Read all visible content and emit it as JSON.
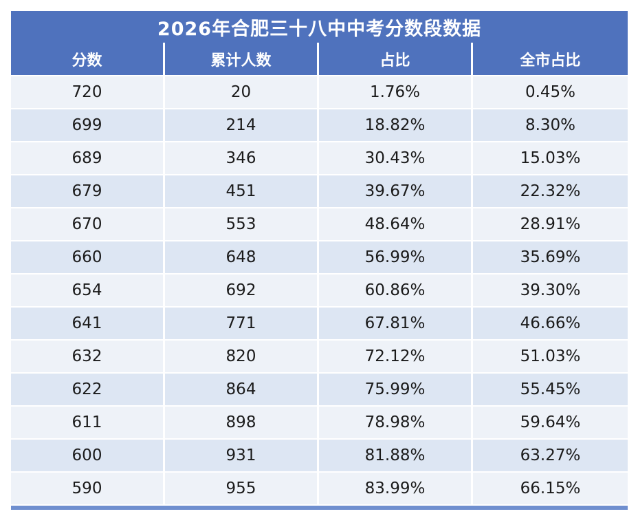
{
  "table": {
    "title": "2026年合肥三十八中中考分数段数据",
    "columns": [
      "分数",
      "累计人数",
      "占比",
      "全市占比"
    ],
    "rows": [
      [
        "720",
        "20",
        "1.76%",
        "0.45%"
      ],
      [
        "699",
        "214",
        "18.82%",
        "8.30%"
      ],
      [
        "689",
        "346",
        "30.43%",
        "15.03%"
      ],
      [
        "679",
        "451",
        "39.67%",
        "22.32%"
      ],
      [
        "670",
        "553",
        "48.64%",
        "28.91%"
      ],
      [
        "660",
        "648",
        "56.99%",
        "35.69%"
      ],
      [
        "654",
        "692",
        "60.86%",
        "39.30%"
      ],
      [
        "641",
        "771",
        "67.81%",
        "46.66%"
      ],
      [
        "632",
        "820",
        "72.12%",
        "51.03%"
      ],
      [
        "622",
        "864",
        "75.99%",
        "55.45%"
      ],
      [
        "611",
        "898",
        "78.98%",
        "59.64%"
      ],
      [
        "600",
        "931",
        "81.88%",
        "63.27%"
      ],
      [
        "590",
        "955",
        "83.99%",
        "66.15%"
      ]
    ]
  },
  "colors": {
    "header_bg": "#4f72bd",
    "row_light": "#eef2f8",
    "row_dark": "#dde6f3"
  }
}
